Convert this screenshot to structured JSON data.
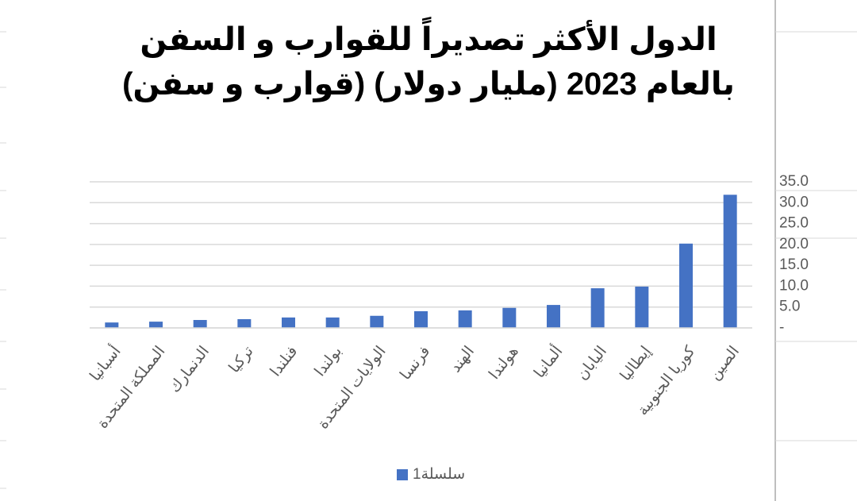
{
  "chart_data": {
    "type": "bar",
    "title": "الدول الأكثر تصديراً للقوارب و السفن بالعام 2023 (مليار دولار) (قوارب و سفن)",
    "categories": [
      "أسبانيا",
      "المملكة المتحدة",
      "الدنمارك",
      "تركيا",
      "فنلندا",
      "بولندا",
      "الولايات المتحدة",
      "فرنسا",
      "الهند",
      "هولندا",
      "ألمانيا",
      "اليابان",
      "إيطاليا",
      "كوريا الجنوبية",
      "الصين"
    ],
    "series": [
      {
        "name": "سلسلة1",
        "color": "#4472c4",
        "values": [
          1.3,
          1.5,
          1.9,
          2.1,
          2.5,
          2.5,
          2.9,
          4.0,
          4.2,
          4.8,
          5.5,
          9.5,
          9.9,
          20.2,
          31.9
        ]
      }
    ],
    "ylim": [
      0,
      35
    ],
    "yticks": [
      {
        "value": 0,
        "label": "-"
      },
      {
        "value": 5,
        "label": "5.0"
      },
      {
        "value": 10,
        "label": "10.0"
      },
      {
        "value": 15,
        "label": "15.0"
      },
      {
        "value": 20,
        "label": "20.0"
      },
      {
        "value": 25,
        "label": "25.0"
      },
      {
        "value": 30,
        "label": "30.0"
      },
      {
        "value": 35,
        "label": "35.0"
      }
    ],
    "grid": true,
    "y_axis_side": "right",
    "legend": "bottom"
  }
}
